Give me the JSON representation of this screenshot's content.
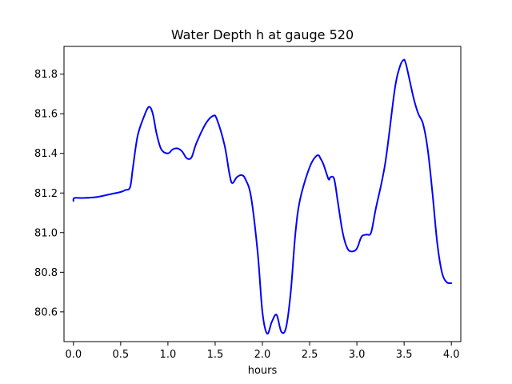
{
  "chart_data": {
    "type": "line",
    "title": "Water Depth h at gauge 520",
    "xlabel": "hours",
    "ylabel": "",
    "xlim": [
      -0.1,
      4.1
    ],
    "ylim": [
      80.45,
      81.94
    ],
    "xticks": [
      0.0,
      0.5,
      1.0,
      1.5,
      2.0,
      2.5,
      3.0,
      3.5,
      4.0
    ],
    "xtick_labels": [
      "0.0",
      "0.5",
      "1.0",
      "1.5",
      "2.0",
      "2.5",
      "3.0",
      "3.5",
      "4.0"
    ],
    "yticks": [
      80.6,
      80.8,
      81.0,
      81.2,
      81.4,
      81.6,
      81.8
    ],
    "ytick_labels": [
      "80.6",
      "80.8",
      "81.0",
      "81.2",
      "81.4",
      "81.6",
      "81.8"
    ],
    "grid": false,
    "series": [
      {
        "color": "#0000ff",
        "x": [
          0.0,
          0.01,
          0.1,
          0.25,
          0.4,
          0.5,
          0.55,
          0.6,
          0.63,
          0.68,
          0.75,
          0.8,
          0.84,
          0.88,
          0.93,
          1.0,
          1.05,
          1.1,
          1.15,
          1.2,
          1.25,
          1.3,
          1.4,
          1.48,
          1.52,
          1.6,
          1.65,
          1.68,
          1.73,
          1.78,
          1.82,
          1.88,
          1.95,
          2.0,
          2.05,
          2.1,
          2.15,
          2.2,
          2.25,
          2.3,
          2.35,
          2.4,
          2.5,
          2.58,
          2.62,
          2.65,
          2.7,
          2.72,
          2.76,
          2.8,
          2.85,
          2.9,
          2.95,
          3.0,
          3.05,
          3.1,
          3.15,
          3.2,
          3.3,
          3.4,
          3.45,
          3.49,
          3.52,
          3.6,
          3.65,
          3.7,
          3.75,
          3.8,
          3.85,
          3.9,
          3.95,
          4.0
        ],
        "y": [
          81.16,
          81.175,
          81.175,
          81.18,
          81.195,
          81.205,
          81.215,
          81.23,
          81.33,
          81.49,
          81.59,
          81.635,
          81.6,
          81.5,
          81.42,
          81.4,
          81.42,
          81.425,
          81.41,
          81.375,
          81.38,
          81.45,
          81.55,
          81.59,
          81.57,
          81.44,
          81.3,
          81.25,
          81.28,
          81.29,
          81.27,
          81.18,
          80.9,
          80.6,
          80.49,
          80.55,
          80.585,
          80.5,
          80.52,
          80.7,
          81.0,
          81.17,
          81.33,
          81.39,
          81.37,
          81.34,
          81.27,
          81.28,
          81.27,
          81.15,
          81.0,
          80.92,
          80.905,
          80.92,
          80.98,
          80.99,
          81.0,
          81.12,
          81.35,
          81.72,
          81.83,
          81.87,
          81.85,
          81.68,
          81.6,
          81.55,
          81.42,
          81.2,
          80.95,
          80.8,
          80.75,
          80.745
        ]
      }
    ]
  }
}
